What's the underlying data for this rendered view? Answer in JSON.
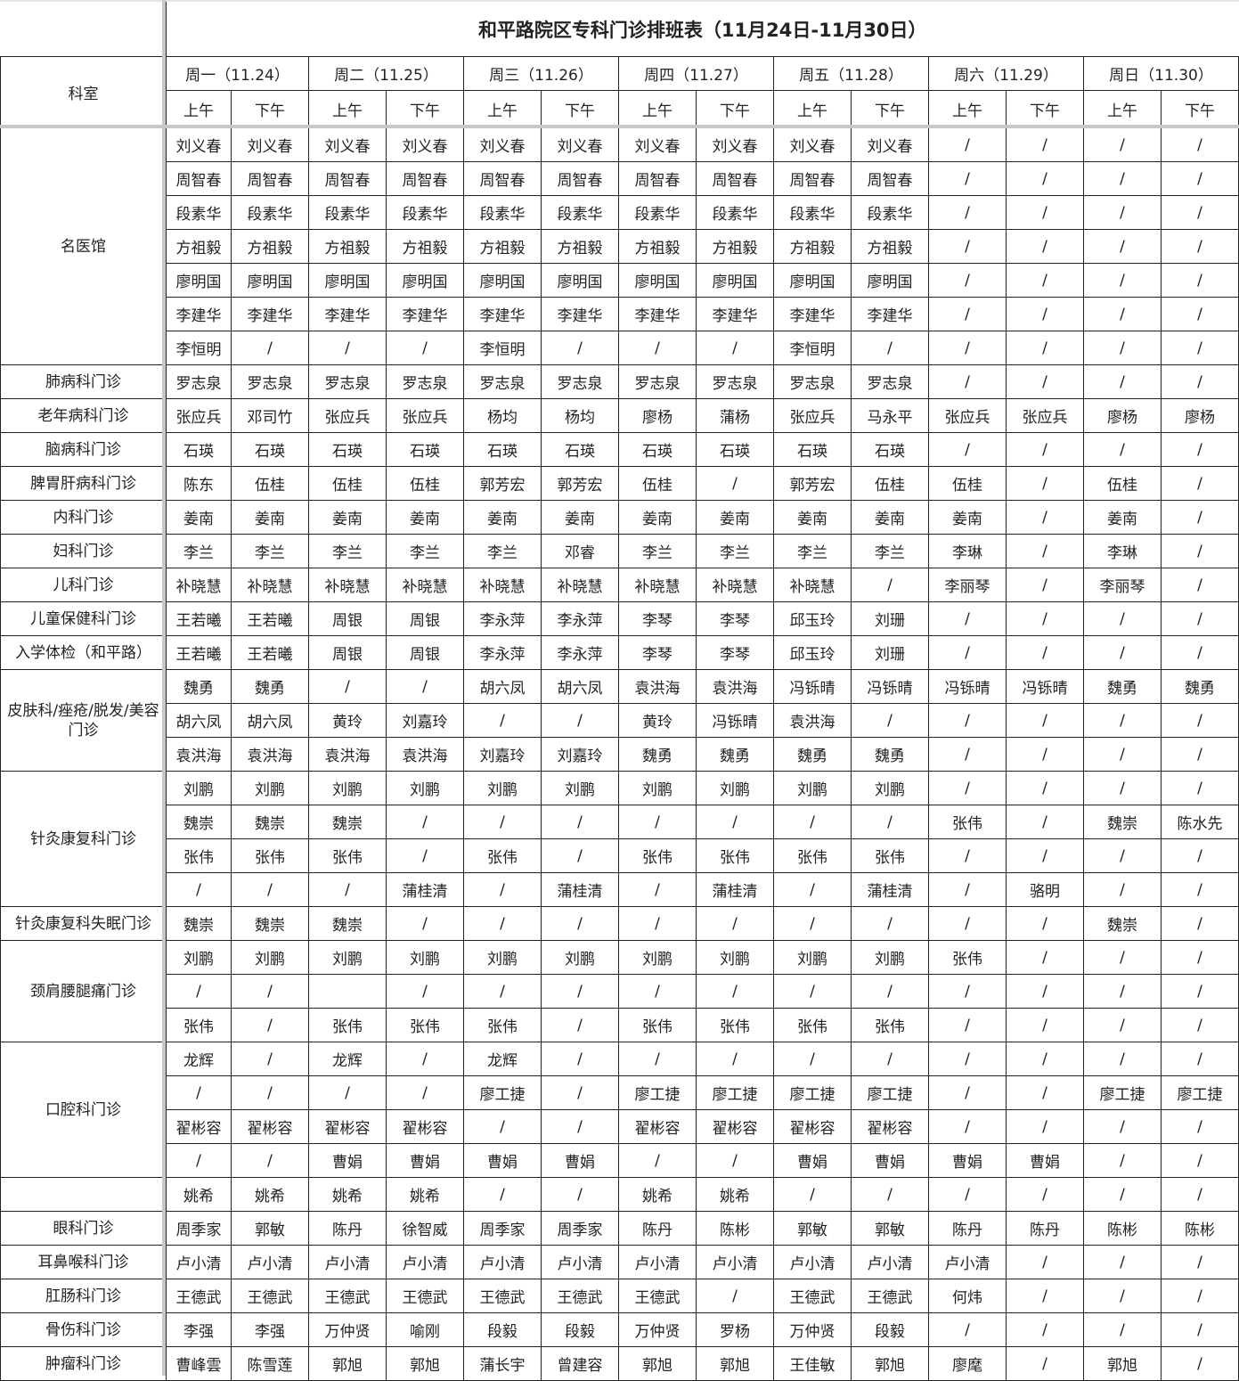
{
  "title": "和平路院区专科门诊排班表（11月24日-11月30日）",
  "dept_header": "科室",
  "days": [
    "周一（11.24）",
    "周二（11.25）",
    "周三（11.26）",
    "周四（11.27）",
    "周五（11.28）",
    "周六（11.29）",
    "周日（11.30）"
  ],
  "halves": [
    "上午",
    "下午"
  ],
  "colors": {
    "grid": "#222222",
    "frozen_pane_line": "#c8c8c8"
  },
  "departments": [
    {
      "name": "名医馆",
      "rows": [
        [
          "刘义春",
          "刘义春",
          "刘义春",
          "刘义春",
          "刘义春",
          "刘义春",
          "刘义春",
          "刘义春",
          "刘义春",
          "刘义春",
          "/",
          "/",
          "/",
          "/"
        ],
        [
          "周智春",
          "周智春",
          "周智春",
          "周智春",
          "周智春",
          "周智春",
          "周智春",
          "周智春",
          "周智春",
          "周智春",
          "/",
          "/",
          "/",
          "/"
        ],
        [
          "段素华",
          "段素华",
          "段素华",
          "段素华",
          "段素华",
          "段素华",
          "段素华",
          "段素华",
          "段素华",
          "段素华",
          "/",
          "/",
          "/",
          "/"
        ],
        [
          "方祖毅",
          "方祖毅",
          "方祖毅",
          "方祖毅",
          "方祖毅",
          "方祖毅",
          "方祖毅",
          "方祖毅",
          "方祖毅",
          "方祖毅",
          "/",
          "/",
          "/",
          "/"
        ],
        [
          "廖明国",
          "廖明国",
          "廖明国",
          "廖明国",
          "廖明国",
          "廖明国",
          "廖明国",
          "廖明国",
          "廖明国",
          "廖明国",
          "/",
          "/",
          "/",
          "/"
        ],
        [
          "李建华",
          "李建华",
          "李建华",
          "李建华",
          "李建华",
          "李建华",
          "李建华",
          "李建华",
          "李建华",
          "李建华",
          "/",
          "/",
          "/",
          "/"
        ],
        [
          "李恒明",
          "/",
          "/",
          "/",
          "李恒明",
          "/",
          "/",
          "/",
          "李恒明",
          "/",
          "/",
          "/",
          "/",
          "/"
        ]
      ]
    },
    {
      "name": "肺病科门诊",
      "rows": [
        [
          "罗志泉",
          "罗志泉",
          "罗志泉",
          "罗志泉",
          "罗志泉",
          "罗志泉",
          "罗志泉",
          "罗志泉",
          "罗志泉",
          "罗志泉",
          "/",
          "/",
          "/",
          "/"
        ]
      ]
    },
    {
      "name": "老年病科门诊",
      "rows": [
        [
          "张应兵",
          "邓司竹",
          "张应兵",
          "张应兵",
          "杨均",
          "杨均",
          "廖杨",
          "蒲杨",
          "张应兵",
          "马永平",
          "张应兵",
          "张应兵",
          "廖杨",
          "廖杨"
        ]
      ]
    },
    {
      "name": "脑病科门诊",
      "rows": [
        [
          "石瑛",
          "石瑛",
          "石瑛",
          "石瑛",
          "石瑛",
          "石瑛",
          "石瑛",
          "石瑛",
          "石瑛",
          "石瑛",
          "/",
          "/",
          "/",
          "/"
        ]
      ]
    },
    {
      "name": "脾胃肝病科门诊",
      "rows": [
        [
          "陈东",
          "伍桂",
          "伍桂",
          "伍桂",
          "郭芳宏",
          "郭芳宏",
          "伍桂",
          "/",
          "郭芳宏",
          "伍桂",
          "伍桂",
          "/",
          "伍桂",
          "/"
        ]
      ]
    },
    {
      "name": "内科门诊",
      "rows": [
        [
          "姜南",
          "姜南",
          "姜南",
          "姜南",
          "姜南",
          "姜南",
          "姜南",
          "姜南",
          "姜南",
          "姜南",
          "姜南",
          "/",
          "姜南",
          "/"
        ]
      ]
    },
    {
      "name": "妇科门诊",
      "rows": [
        [
          "李兰",
          "李兰",
          "李兰",
          "李兰",
          "李兰",
          "邓睿",
          "李兰",
          "李兰",
          "李兰",
          "李兰",
          "李琳",
          "/",
          "李琳",
          "/"
        ]
      ]
    },
    {
      "name": "儿科门诊",
      "rows": [
        [
          "补晓慧",
          "补晓慧",
          "补晓慧",
          "补晓慧",
          "补晓慧",
          "补晓慧",
          "补晓慧",
          "补晓慧",
          "补晓慧",
          "/",
          "李丽琴",
          "/",
          "李丽琴",
          "/"
        ]
      ]
    },
    {
      "name": "儿童保健科门诊",
      "rows": [
        [
          "王若曦",
          "王若曦",
          "周银",
          "周银",
          "李永萍",
          "李永萍",
          "李琴",
          "李琴",
          "邱玉玲",
          "刘珊",
          "/",
          "/",
          "/",
          "/"
        ]
      ]
    },
    {
      "name": "入学体检（和平路）",
      "rows": [
        [
          "王若曦",
          "王若曦",
          "周银",
          "周银",
          "李永萍",
          "李永萍",
          "李琴",
          "李琴",
          "邱玉玲",
          "刘珊",
          "/",
          "/",
          "/",
          "/"
        ]
      ]
    },
    {
      "name": "皮肤科/痤疮/脱发/美容门诊",
      "rows": [
        [
          "魏勇",
          "魏勇",
          "/",
          "/",
          "胡六凤",
          "胡六凤",
          "袁洪海",
          "袁洪海",
          "冯铄晴",
          "冯铄晴",
          "冯铄晴",
          "冯铄晴",
          "魏勇",
          "魏勇"
        ],
        [
          "胡六凤",
          "胡六凤",
          "黄玲",
          "刘嘉玲",
          "/",
          "/",
          "黄玲",
          "冯铄晴",
          "袁洪海",
          "/",
          "/",
          "/",
          "/",
          "/"
        ],
        [
          "袁洪海",
          "袁洪海",
          "袁洪海",
          "袁洪海",
          "刘嘉玲",
          "刘嘉玲",
          "魏勇",
          "魏勇",
          "魏勇",
          "魏勇",
          "/",
          "/",
          "/",
          "/"
        ]
      ]
    },
    {
      "name": "针灸康复科门诊",
      "rows": [
        [
          "刘鹏",
          "刘鹏",
          "刘鹏",
          "刘鹏",
          "刘鹏",
          "刘鹏",
          "刘鹏",
          "刘鹏",
          "刘鹏",
          "刘鹏",
          "/",
          "/",
          "/",
          "/"
        ],
        [
          "魏崇",
          "魏崇",
          "魏崇",
          "/",
          "/",
          "/",
          "/",
          "/",
          "/",
          "/",
          "张伟",
          "/",
          "魏崇",
          "陈水先"
        ],
        [
          "张伟",
          "张伟",
          "张伟",
          "/",
          "张伟",
          "/",
          "张伟",
          "张伟",
          "张伟",
          "张伟",
          "/",
          "/",
          "/",
          "/"
        ],
        [
          "/",
          "/",
          "/",
          "蒲桂清",
          "/",
          "蒲桂清",
          "/",
          "蒲桂清",
          "/",
          "蒲桂清",
          "/",
          "骆明",
          "/",
          "/"
        ]
      ]
    },
    {
      "name": "针灸康复科失眠门诊",
      "rows": [
        [
          "魏崇",
          "魏崇",
          "魏崇",
          "/",
          "/",
          "/",
          "/",
          "/",
          "/",
          "/",
          "/",
          "/",
          "魏崇",
          "/"
        ]
      ]
    },
    {
      "name": "颈肩腰腿痛门诊",
      "rows": [
        [
          "刘鹏",
          "刘鹏",
          "刘鹏",
          "刘鹏",
          "刘鹏",
          "刘鹏",
          "刘鹏",
          "刘鹏",
          "刘鹏",
          "刘鹏",
          "张伟",
          "/",
          "/",
          "/"
        ],
        [
          "/",
          "/",
          "",
          "/",
          "/",
          "/",
          "/",
          "/",
          "/",
          "/",
          "/",
          "/",
          "/",
          "/"
        ],
        [
          "张伟",
          "/",
          "张伟",
          "张伟",
          "张伟",
          "/",
          "张伟",
          "张伟",
          "张伟",
          "张伟",
          "/",
          "/",
          "/",
          "/"
        ]
      ]
    },
    {
      "name": "口腔科门诊",
      "rows": [
        [
          "龙辉",
          "/",
          "龙辉",
          "/",
          "龙辉",
          "/",
          "/",
          "/",
          "/",
          "/",
          "/",
          "/",
          "/",
          "/"
        ],
        [
          "/",
          "/",
          "/",
          "/",
          "廖工捷",
          "/",
          "廖工捷",
          "廖工捷",
          "廖工捷",
          "廖工捷",
          "/",
          "/",
          "廖工捷",
          "廖工捷"
        ],
        [
          "翟彬容",
          "翟彬容",
          "翟彬容",
          "翟彬容",
          "/",
          "/",
          "翟彬容",
          "翟彬容",
          "翟彬容",
          "翟彬容",
          "/",
          "/",
          "/",
          "/"
        ],
        [
          "/",
          "/",
          "曹娟",
          "曹娟",
          "曹娟",
          "曹娟",
          "/",
          "/",
          "曹娟",
          "曹娟",
          "曹娟",
          "曹娟",
          "/",
          "/"
        ]
      ]
    },
    {
      "name": "",
      "rows": [
        [
          "姚希",
          "姚希",
          "姚希",
          "姚希",
          "/",
          "/",
          "姚希",
          "姚希",
          "/",
          "/",
          "/",
          "/",
          "/",
          "/"
        ]
      ]
    },
    {
      "name": "眼科门诊",
      "rows": [
        [
          "周季家",
          "郭敏",
          "陈丹",
          "徐智威",
          "周季家",
          "周季家",
          "陈丹",
          "陈彬",
          "郭敏",
          "郭敏",
          "陈丹",
          "陈丹",
          "陈彬",
          "陈彬"
        ]
      ]
    },
    {
      "name": "耳鼻喉科门诊",
      "rows": [
        [
          "卢小清",
          "卢小清",
          "卢小清",
          "卢小清",
          "卢小清",
          "卢小清",
          "卢小清",
          "卢小清",
          "卢小清",
          "卢小清",
          "卢小清",
          "/",
          "/",
          "/"
        ]
      ]
    },
    {
      "name": "肛肠科门诊",
      "rows": [
        [
          "王德武",
          "王德武",
          "王德武",
          "王德武",
          "王德武",
          "王德武",
          "王德武",
          "/",
          "王德武",
          "王德武",
          "何炜",
          "/",
          "/",
          "/"
        ]
      ]
    },
    {
      "name": "骨伤科门诊",
      "rows": [
        [
          "李强",
          "李强",
          "万仲贤",
          "喻刚",
          "段毅",
          "段毅",
          "万仲贤",
          "罗杨",
          "万仲贤",
          "段毅",
          "/",
          "/",
          "/",
          "/"
        ]
      ]
    },
    {
      "name": "肿瘤科门诊",
      "rows": [
        [
          "曹峰雲",
          "陈雪莲",
          "郭旭",
          "郭旭",
          "蒲长宇",
          "曾建容",
          "郭旭",
          "郭旭",
          "王佳敏",
          "郭旭",
          "廖麾",
          "/",
          "郭旭",
          "/"
        ]
      ]
    }
  ]
}
